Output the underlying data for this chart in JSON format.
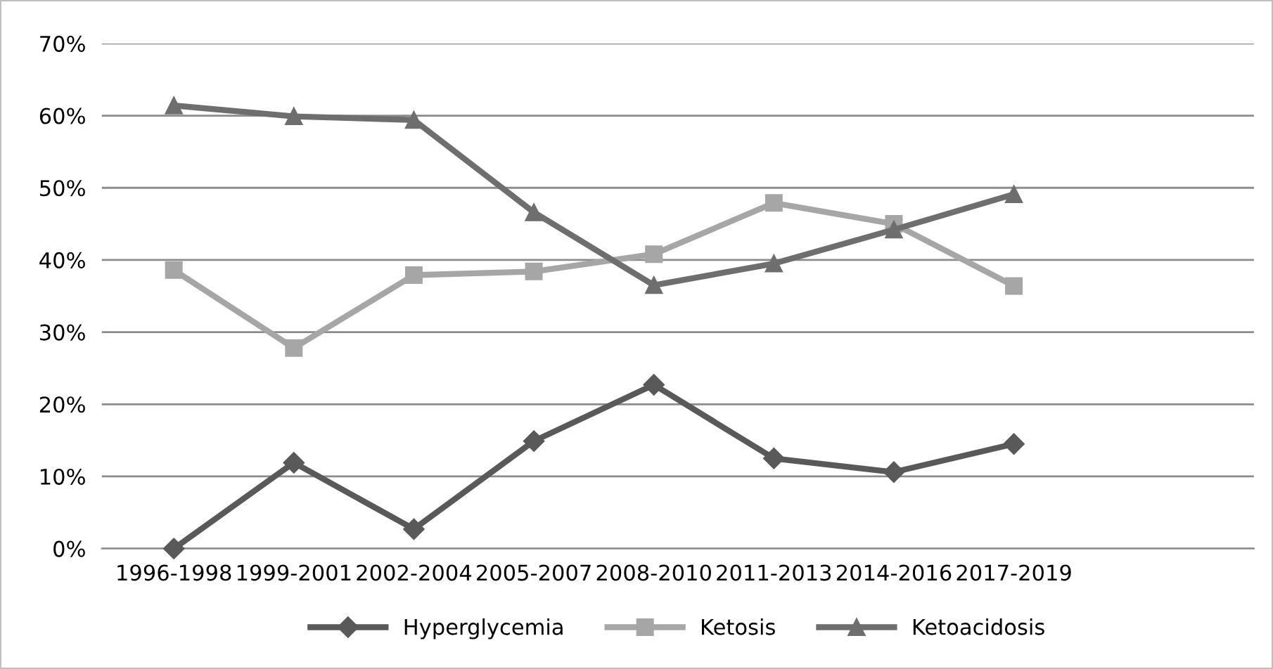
{
  "chart_data": {
    "type": "line",
    "categories": [
      "1996-1998",
      "1999-2001",
      "2002-2004",
      "2005-2007",
      "2008-2010",
      "2011-2013",
      "2014-2016",
      "2017-2019"
    ],
    "series": [
      {
        "name": "Hyperglycemia",
        "color": "#595959",
        "marker": "diamond",
        "values": [
          0,
          11.9,
          2.7,
          14.9,
          22.7,
          12.5,
          10.6,
          14.5
        ]
      },
      {
        "name": "Ketosis",
        "color": "#a6a6a6",
        "marker": "square",
        "values": [
          38.6,
          27.8,
          37.9,
          38.4,
          40.8,
          47.9,
          45.0,
          36.4
        ]
      },
      {
        "name": "Ketoacidosis",
        "color": "#6e6e6e",
        "marker": "triangle",
        "values": [
          61.4,
          59.9,
          59.4,
          46.6,
          36.5,
          39.5,
          44.2,
          49.1
        ]
      }
    ],
    "ylim": [
      0,
      70
    ],
    "yticks": [
      {
        "value": 0,
        "label": "0%"
      },
      {
        "value": 10,
        "label": "10%"
      },
      {
        "value": 20,
        "label": "20%"
      },
      {
        "value": 30,
        "label": "30%"
      },
      {
        "value": 40,
        "label": "40%"
      },
      {
        "value": 50,
        "label": "50%"
      },
      {
        "value": 60,
        "label": "60%"
      },
      {
        "value": 70,
        "label": "70%"
      }
    ],
    "grid": "y",
    "legend": "bottom",
    "line_style": "solid"
  }
}
